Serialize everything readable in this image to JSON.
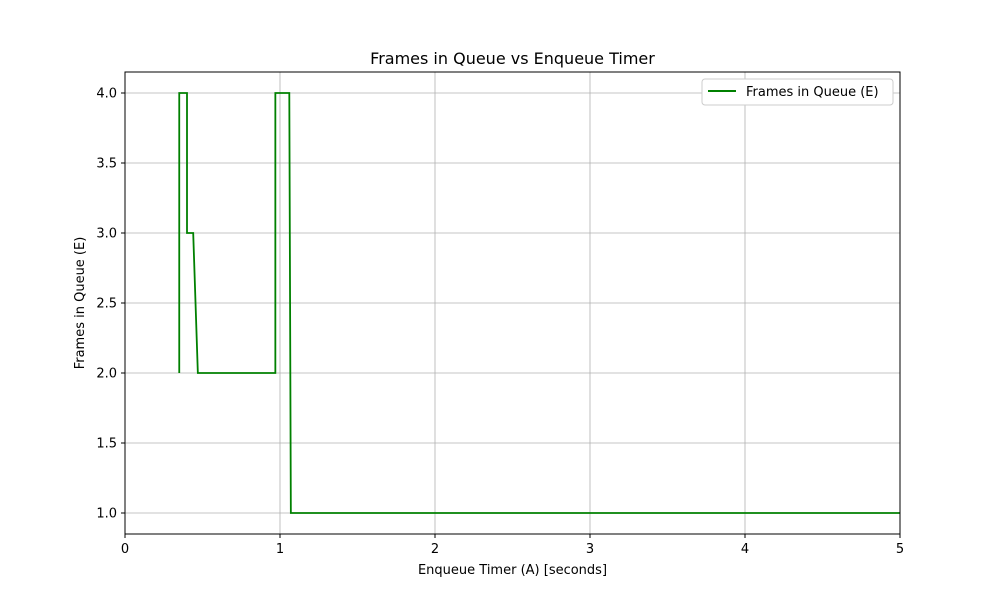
{
  "chart_data": {
    "type": "line",
    "title": "Frames in Queue vs Enqueue Timer",
    "xlabel": "Enqueue Timer (A) [seconds]",
    "ylabel": "Frames in Queue (E)",
    "xlim": [
      0,
      5
    ],
    "ylim": [
      0.85,
      4.15
    ],
    "xticks": [
      0,
      1,
      2,
      3,
      4,
      5
    ],
    "xtick_labels": [
      "0",
      "1",
      "2",
      "3",
      "4",
      "5"
    ],
    "yticks": [
      1.0,
      1.5,
      2.0,
      2.5,
      3.0,
      3.5,
      4.0
    ],
    "ytick_labels": [
      "1.0",
      "1.5",
      "2.0",
      "2.5",
      "3.0",
      "3.5",
      "4.0"
    ],
    "grid": true,
    "legend_position": "top-right",
    "series": [
      {
        "name": "Frames in Queue (E)",
        "color": "#008000",
        "x": [
          0.35,
          0.35,
          0.36,
          0.4,
          0.4,
          0.44,
          0.47,
          0.47,
          0.97,
          0.97,
          1.06,
          1.07,
          1.07,
          5.0
        ],
        "y": [
          2,
          4,
          4,
          4,
          3,
          3,
          2,
          2,
          2,
          4,
          4,
          1,
          1,
          1
        ]
      }
    ]
  }
}
